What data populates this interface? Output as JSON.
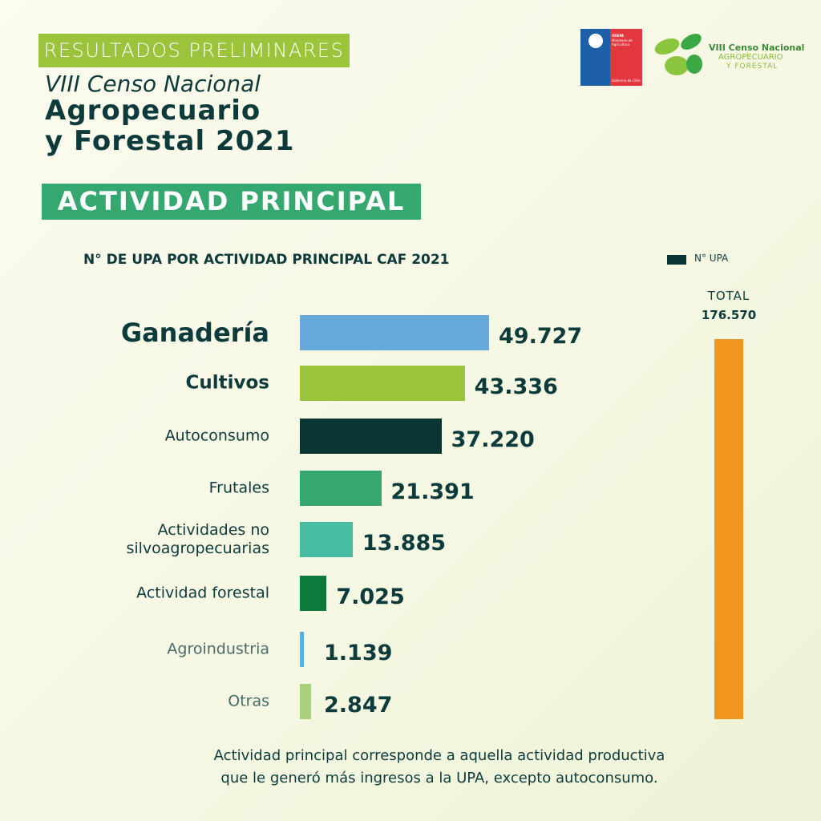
{
  "header": {
    "tag": "RESULTADOS PRELIMINARES",
    "subtitle": "VIII Censo Nacional",
    "title_line1": "Agropecuario",
    "title_line2": "y Forestal 2021",
    "section": "ACTIVIDAD PRINCIPAL"
  },
  "logos": {
    "odepa": "ODEPA",
    "ministry": "Ministerio de Agricultura",
    "government": "Gobierno de Chile",
    "censo_line1": "VIII Censo Nacional",
    "censo_line2": "AGROPECUARIO",
    "censo_line3": "Y FORESTAL"
  },
  "chart_data": {
    "type": "bar",
    "orientation": "horizontal",
    "title": "N° DE UPA POR ACTIVIDAD PRINCIPAL CAF 2021",
    "categories": [
      "Ganadería",
      "Cultivos",
      "Autoconsumo",
      "Frutales",
      "Actividades no silvoagropecuarias",
      "Actividad forestal",
      "Agroindustria",
      "Otras"
    ],
    "series": [
      {
        "name": "N° UPA",
        "color": "#0c3535",
        "values": [
          49727,
          43336,
          37220,
          21391,
          13885,
          7025,
          1139,
          2847
        ],
        "value_labels": [
          "49.727",
          "43.336",
          "37.220",
          "21.391",
          "13.885",
          "7.025",
          "1.139",
          "2.847"
        ],
        "colors": [
          "#66aadc",
          "#9bc43c",
          "#0c3535",
          "#35a870",
          "#48bca0",
          "#0b7a3a",
          "#5aaed8",
          "#a8cf7a"
        ]
      }
    ],
    "total": {
      "label": "TOTAL",
      "value": 176570,
      "value_label": "176.570",
      "color": "#f0961e"
    },
    "legend": "top-right"
  },
  "footnote": [
    "Actividad principal corresponde a aquella actividad productiva",
    "que le generó más ingresos a la UPA, excepto autoconsumo."
  ]
}
